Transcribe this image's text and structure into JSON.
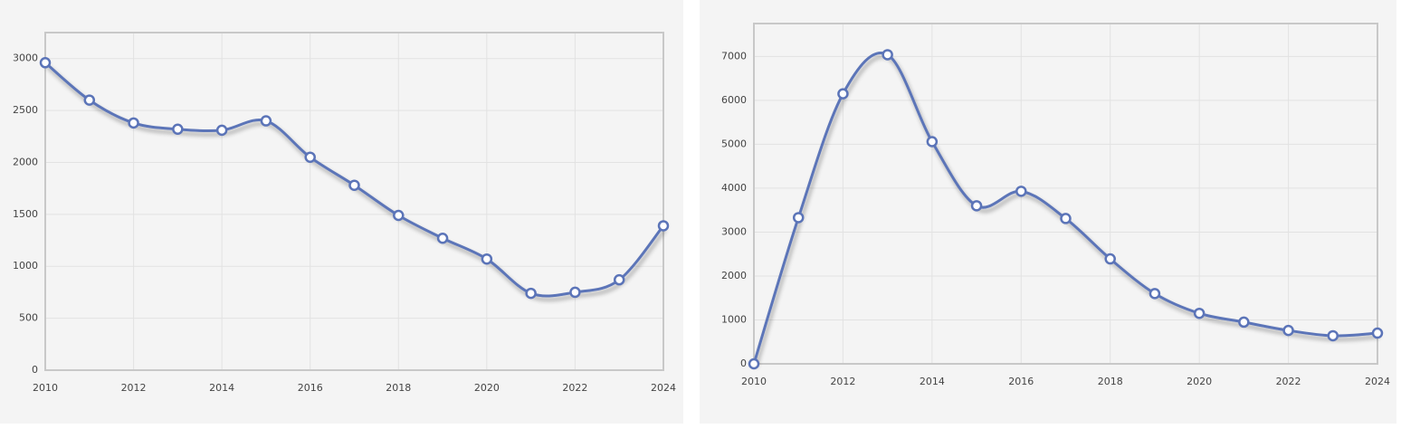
{
  "chart_data": [
    {
      "type": "line",
      "x": [
        2010,
        2011,
        2012,
        2013,
        2014,
        2015,
        2016,
        2017,
        2018,
        2019,
        2020,
        2021,
        2022,
        2023,
        2024
      ],
      "values": [
        2960,
        2600,
        2380,
        2320,
        2310,
        2400,
        2050,
        1780,
        1490,
        1270,
        1070,
        740,
        750,
        870,
        1390
      ],
      "color": "#5b74b8",
      "xlim": [
        2010,
        2024
      ],
      "xticks": [
        2010,
        2012,
        2014,
        2016,
        2018,
        2020,
        2022,
        2024
      ],
      "ylim": [
        0,
        3250
      ],
      "yticks": [
        0,
        500,
        1000,
        1500,
        2000,
        2500,
        3000
      ],
      "grid": true
    },
    {
      "type": "line",
      "x": [
        2010,
        2011,
        2012,
        2013,
        2014,
        2015,
        2016,
        2017,
        2018,
        2019,
        2020,
        2021,
        2022,
        2023,
        2024
      ],
      "values": [
        0,
        3330,
        6150,
        7040,
        5060,
        3600,
        3930,
        3310,
        2390,
        1600,
        1150,
        950,
        760,
        640,
        700
      ],
      "color": "#5b74b8",
      "xlim": [
        2010,
        2024
      ],
      "xticks": [
        2010,
        2012,
        2014,
        2016,
        2018,
        2020,
        2022,
        2024
      ],
      "ylim": [
        0,
        7750
      ],
      "yticks": [
        0,
        1000,
        2000,
        3000,
        4000,
        5000,
        6000,
        7000
      ],
      "grid": true
    }
  ]
}
